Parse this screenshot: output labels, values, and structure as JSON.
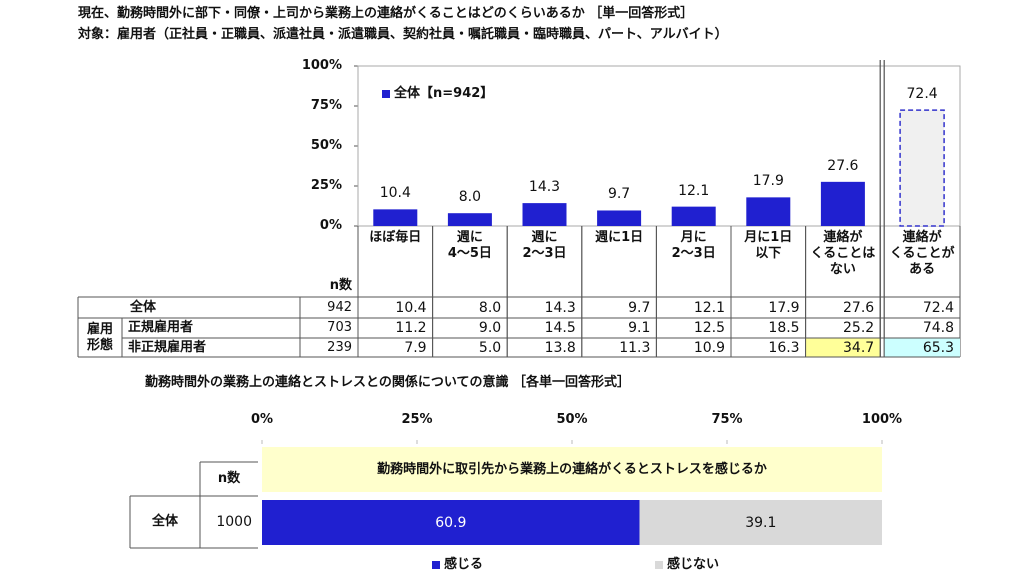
{
  "header": {
    "title": "現在、勤務時間外に部下・同僚・上司から業務上の連絡がくることはどのくらいあるか ［単一回答形式］",
    "subtitle": "対象：雇用者（正社員・正職員、派遣社員・派遣職員、契約社員・嘱託職員・臨時職員、パート、アルバイト）"
  },
  "chart_data": [
    {
      "type": "bar",
      "categories": [
        "ほぼ毎日",
        "週に\n4～5日",
        "週に\n2～3日",
        "週に1日",
        "月に\n2～3日",
        "月に1日\n以下",
        "連絡が\nくることは\nない"
      ],
      "series": [
        {
          "name": "全体【n=942】",
          "color": "#2020d0",
          "values": [
            10.4,
            8.0,
            14.3,
            9.7,
            12.1,
            17.9,
            27.6
          ],
          "value_labels": [
            "10.4",
            "8.0",
            "14.3",
            "9.7",
            "12.1",
            "17.9",
            "27.6"
          ]
        }
      ],
      "separate": {
        "category": "連絡が\nくることが\nある",
        "value": 72.4,
        "value_label": "72.4",
        "color": "#f0f0f0",
        "border": "#3333cc"
      },
      "ylim": [
        0,
        100
      ],
      "yticks": [
        {
          "value": 0,
          "label": "0%"
        },
        {
          "value": 25,
          "label": "25%"
        },
        {
          "value": 50,
          "label": "50%"
        },
        {
          "value": 75,
          "label": "75%"
        },
        {
          "value": 100,
          "label": "100%"
        }
      ],
      "grid": false,
      "legend": "top-left"
    },
    {
      "type": "stacked-hbar",
      "title": "勤務時間外の業務上の連絡とストレスとの関係についての意識 ［各単一回答形式］",
      "question": "勤務時間外に取引先から業務上の連絡がくるとストレスを感じるか",
      "question_color": "#ffffcc",
      "categories": [
        "全体"
      ],
      "n_header": "n数",
      "n": [
        1000
      ],
      "series": [
        {
          "name": "感じる",
          "color": "#2020d0",
          "values": [
            60.9
          ]
        },
        {
          "name": "感じない",
          "color": "#d9d9d9",
          "values": [
            39.1
          ]
        }
      ],
      "xlim": [
        0,
        100
      ],
      "xticks": [
        {
          "value": 0,
          "label": "0%"
        },
        {
          "value": 25,
          "label": "25%"
        },
        {
          "value": 50,
          "label": "50%"
        },
        {
          "value": 75,
          "label": "75%"
        },
        {
          "value": 100,
          "label": "100%"
        }
      ],
      "legend": "bottom"
    }
  ],
  "table": {
    "n_header": "n数",
    "group_label": "雇用\n形態",
    "rows": [
      {
        "label": "全体",
        "n": "942",
        "values": [
          "10.4",
          "8.0",
          "14.3",
          "9.7",
          "12.1",
          "17.9",
          "27.6",
          "72.4"
        ]
      },
      {
        "label": "正規雇用者",
        "n": "703",
        "values": [
          "11.2",
          "9.0",
          "14.5",
          "9.1",
          "12.5",
          "18.5",
          "25.2",
          "74.8"
        ]
      },
      {
        "label": "非正規雇用者",
        "n": "239",
        "values": [
          "7.9",
          "5.0",
          "13.8",
          "11.3",
          "10.9",
          "16.3",
          "34.7",
          "65.3"
        ]
      }
    ],
    "highlights": [
      {
        "row": 2,
        "col": 6,
        "color": "#ffff99"
      },
      {
        "row": 2,
        "col": 7,
        "color": "#ccffff"
      }
    ]
  }
}
